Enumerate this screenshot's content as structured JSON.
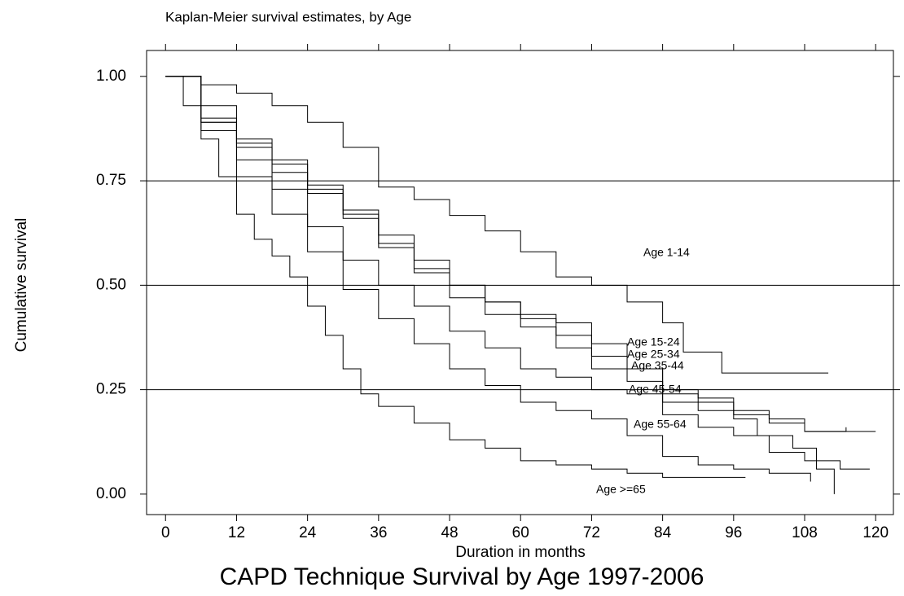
{
  "chart_data": {
    "type": "step",
    "title": "Kaplan-Meier survival estimates, by Age",
    "xlabel": "Duration in months",
    "ylabel": "Cumulative survival",
    "caption": "CAPD Technique Survival by Age 1997-2006",
    "xlim": [
      -3.2,
      123
    ],
    "ylim": [
      -0.049,
      1.062
    ],
    "xticks": [
      0,
      12,
      24,
      36,
      48,
      60,
      72,
      84,
      96,
      108,
      120
    ],
    "yticks": [
      {
        "value": 0,
        "label": "0.00"
      },
      {
        "value": 0.25,
        "label": "0.25"
      },
      {
        "value": 0.5,
        "label": "0.50"
      },
      {
        "value": 0.75,
        "label": "0.75"
      },
      {
        "value": 1,
        "label": "1.00"
      }
    ],
    "grid": true,
    "color": "#000000",
    "series": [
      {
        "name": "Age 1-14",
        "x": [
          0,
          6,
          12,
          18,
          24,
          30,
          36,
          42,
          48,
          54,
          60,
          66,
          72,
          78,
          84,
          87.5,
          94,
          112
        ],
        "values": [
          1,
          0.98,
          0.96,
          0.93,
          0.89,
          0.83,
          0.735,
          0.705,
          0.667,
          0.63,
          0.58,
          0.52,
          0.5,
          0.46,
          0.41,
          0.34,
          0.29,
          0.29
        ]
      },
      {
        "name": "Age 15-24",
        "x": [
          0,
          6,
          12,
          18,
          24,
          30,
          36,
          42,
          48,
          54,
          60,
          66,
          72,
          78,
          84,
          90,
          96,
          102,
          108,
          115
        ],
        "values": [
          1,
          0.93,
          0.85,
          0.8,
          0.74,
          0.68,
          0.62,
          0.56,
          0.5,
          0.46,
          0.43,
          0.41,
          0.36,
          0.3,
          0.24,
          0.22,
          0.19,
          0.18,
          0.15,
          0.16
        ]
      },
      {
        "name": "Age 25-34",
        "x": [
          0,
          6,
          12,
          18,
          24,
          30,
          36,
          42,
          48,
          54,
          60,
          66,
          72,
          78,
          84,
          90,
          96,
          102,
          108,
          120
        ],
        "values": [
          1,
          0.9,
          0.84,
          0.79,
          0.73,
          0.67,
          0.6,
          0.54,
          0.5,
          0.46,
          0.42,
          0.38,
          0.33,
          0.3,
          0.25,
          0.23,
          0.2,
          0.17,
          0.15,
          0.15
        ]
      },
      {
        "name": "Age 35-44",
        "x": [
          0,
          6,
          12,
          18,
          24,
          30,
          36,
          42,
          48,
          54,
          60,
          66,
          72,
          78,
          84,
          90,
          96,
          100,
          106,
          110,
          113
        ],
        "values": [
          1,
          0.89,
          0.83,
          0.77,
          0.72,
          0.66,
          0.59,
          0.53,
          0.47,
          0.43,
          0.4,
          0.35,
          0.3,
          0.27,
          0.22,
          0.2,
          0.18,
          0.14,
          0.11,
          0.06,
          0
        ]
      },
      {
        "name": "Age 45-54",
        "x": [
          0,
          6,
          12,
          18,
          24,
          30,
          36,
          42,
          48,
          54,
          60,
          66,
          72,
          78,
          84,
          90,
          96,
          102,
          108,
          114,
          119
        ],
        "values": [
          1,
          0.89,
          0.8,
          0.73,
          0.64,
          0.56,
          0.5,
          0.45,
          0.39,
          0.35,
          0.3,
          0.28,
          0.25,
          0.24,
          0.19,
          0.16,
          0.14,
          0.1,
          0.08,
          0.06,
          0.06
        ]
      },
      {
        "name": "Age 55-64",
        "x": [
          0,
          6,
          12,
          18,
          24,
          30,
          36,
          42,
          48,
          54,
          60,
          66,
          72,
          78,
          84,
          90,
          96,
          102,
          109
        ],
        "values": [
          1,
          0.87,
          0.76,
          0.67,
          0.58,
          0.49,
          0.42,
          0.36,
          0.3,
          0.26,
          0.22,
          0.2,
          0.18,
          0.14,
          0.09,
          0.07,
          0.06,
          0.05,
          0.03
        ]
      },
      {
        "name": "Age >=65",
        "x": [
          0,
          3,
          6,
          9,
          12,
          15,
          18,
          21,
          24,
          27,
          30,
          33,
          36,
          42,
          48,
          54,
          60,
          66,
          72,
          78,
          84,
          98
        ],
        "values": [
          1,
          0.93,
          0.85,
          0.76,
          0.67,
          0.61,
          0.57,
          0.52,
          0.45,
          0.38,
          0.3,
          0.24,
          0.21,
          0.17,
          0.13,
          0.11,
          0.08,
          0.07,
          0.06,
          0.05,
          0.04,
          0.04
        ]
      }
    ]
  }
}
